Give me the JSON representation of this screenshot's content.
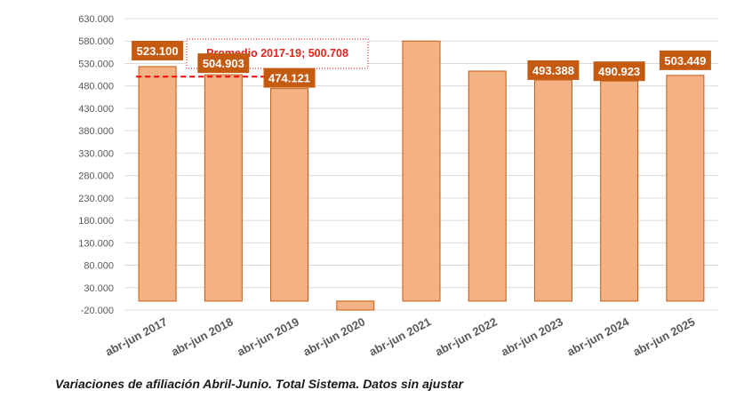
{
  "chart_data": {
    "type": "bar",
    "categories": [
      "abr-jun 2017",
      "abr-jun 2018",
      "abr-jun 2019",
      "abr-jun 2020",
      "abr-jun 2021",
      "abr-jun 2022",
      "abr-jun 2023",
      "abr-jun 2024",
      "abr-jun 2025"
    ],
    "values": [
      523100,
      504903,
      474121,
      -20000,
      580000,
      513000,
      493388,
      490923,
      503449
    ],
    "data_labels": [
      "523.100",
      "504.903",
      "474.121",
      "",
      "",
      "",
      "493.388",
      "490.923",
      "503.449"
    ],
    "y_ticks": [
      "630.000",
      "580.000",
      "530.000",
      "480.000",
      "430.000",
      "380.000",
      "330.000",
      "280.000",
      "230.000",
      "180.000",
      "130.000",
      "80.000",
      "30.000",
      "-20.000"
    ],
    "ylim": [
      -20000,
      630000
    ],
    "grid": true,
    "bar_color": "#f4b183",
    "bar_edge_color": "#c55a11",
    "label_bg_color": "#c55a11",
    "average": {
      "label": "Promedio 2017-19; 500.708",
      "value": 500708,
      "color": "#ff0000"
    }
  },
  "caption": "Variaciones de afiliación Abril-Junio. Total Sistema. Datos sin ajustar"
}
